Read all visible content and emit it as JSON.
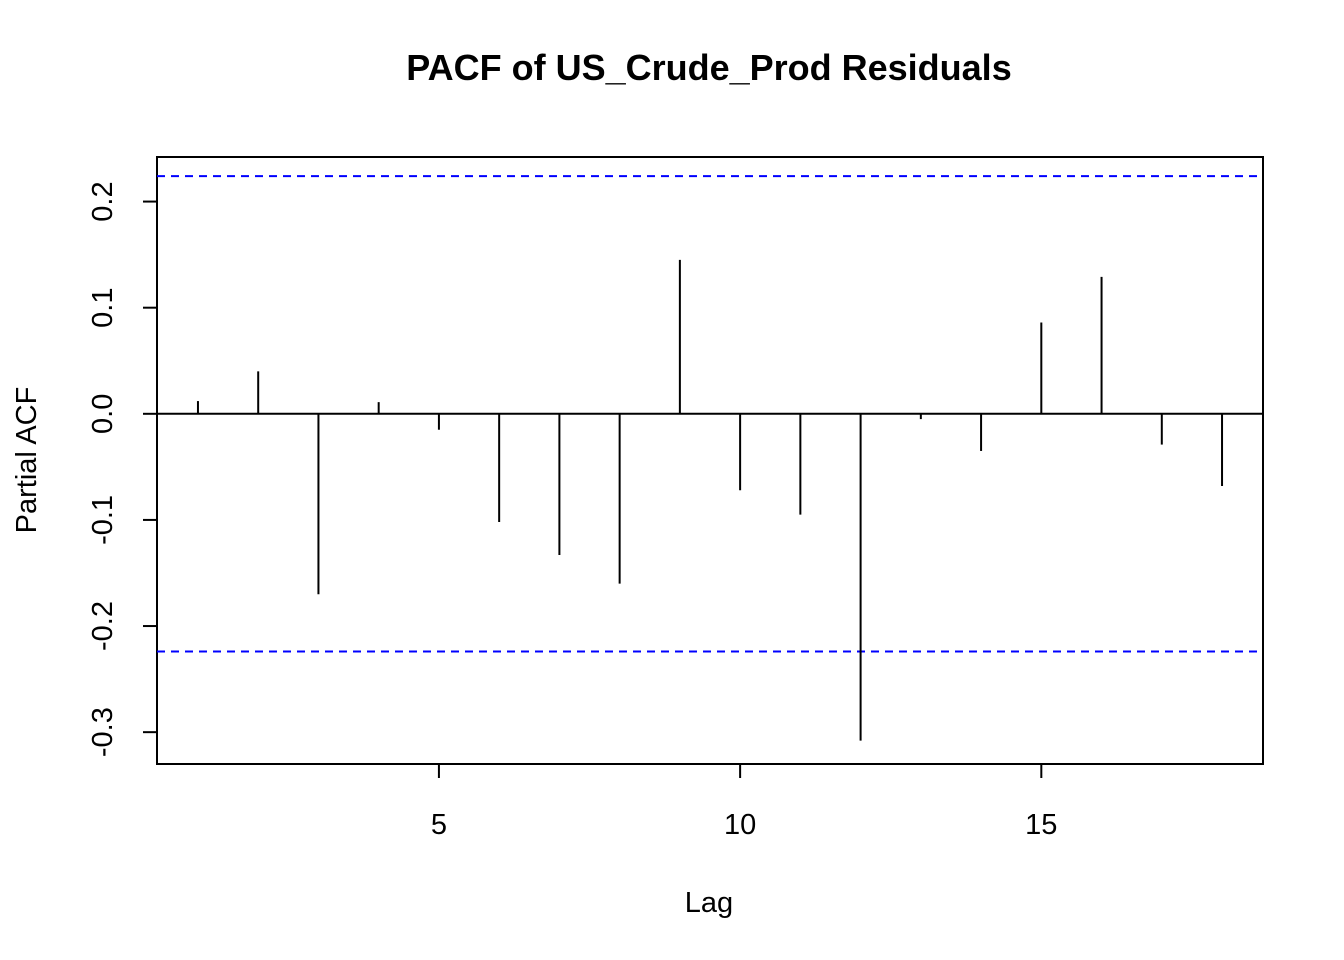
{
  "chart_data": {
    "type": "bar",
    "title": "PACF of US_Crude_Prod Residuals",
    "xlabel": "Lag",
    "ylabel": "Partial ACF",
    "x": [
      1,
      2,
      3,
      4,
      5,
      6,
      7,
      8,
      9,
      10,
      11,
      12,
      13,
      14,
      15,
      16,
      17,
      18
    ],
    "values": [
      0.012,
      0.04,
      -0.17,
      0.011,
      -0.015,
      -0.102,
      -0.133,
      -0.16,
      0.145,
      -0.072,
      -0.095,
      -0.308,
      -0.005,
      -0.035,
      0.086,
      0.129,
      -0.029,
      -0.068
    ],
    "confidence_limits": [
      0.224,
      -0.224
    ],
    "xlim": [
      0.32,
      18.68
    ],
    "ylim": [
      -0.33,
      0.242
    ],
    "x_ticks": [
      5,
      10,
      15
    ],
    "y_ticks": [
      0.2,
      0.1,
      0.0,
      -0.1,
      -0.2,
      -0.3
    ],
    "y_tick_labels": [
      "0.2",
      "0.1",
      "0.0",
      "-0.1",
      "-0.2",
      "-0.3"
    ],
    "grid": false,
    "colors": {
      "bars": "#000000",
      "confidence_lines": "#0000ff",
      "zero_line": "#000000"
    }
  }
}
